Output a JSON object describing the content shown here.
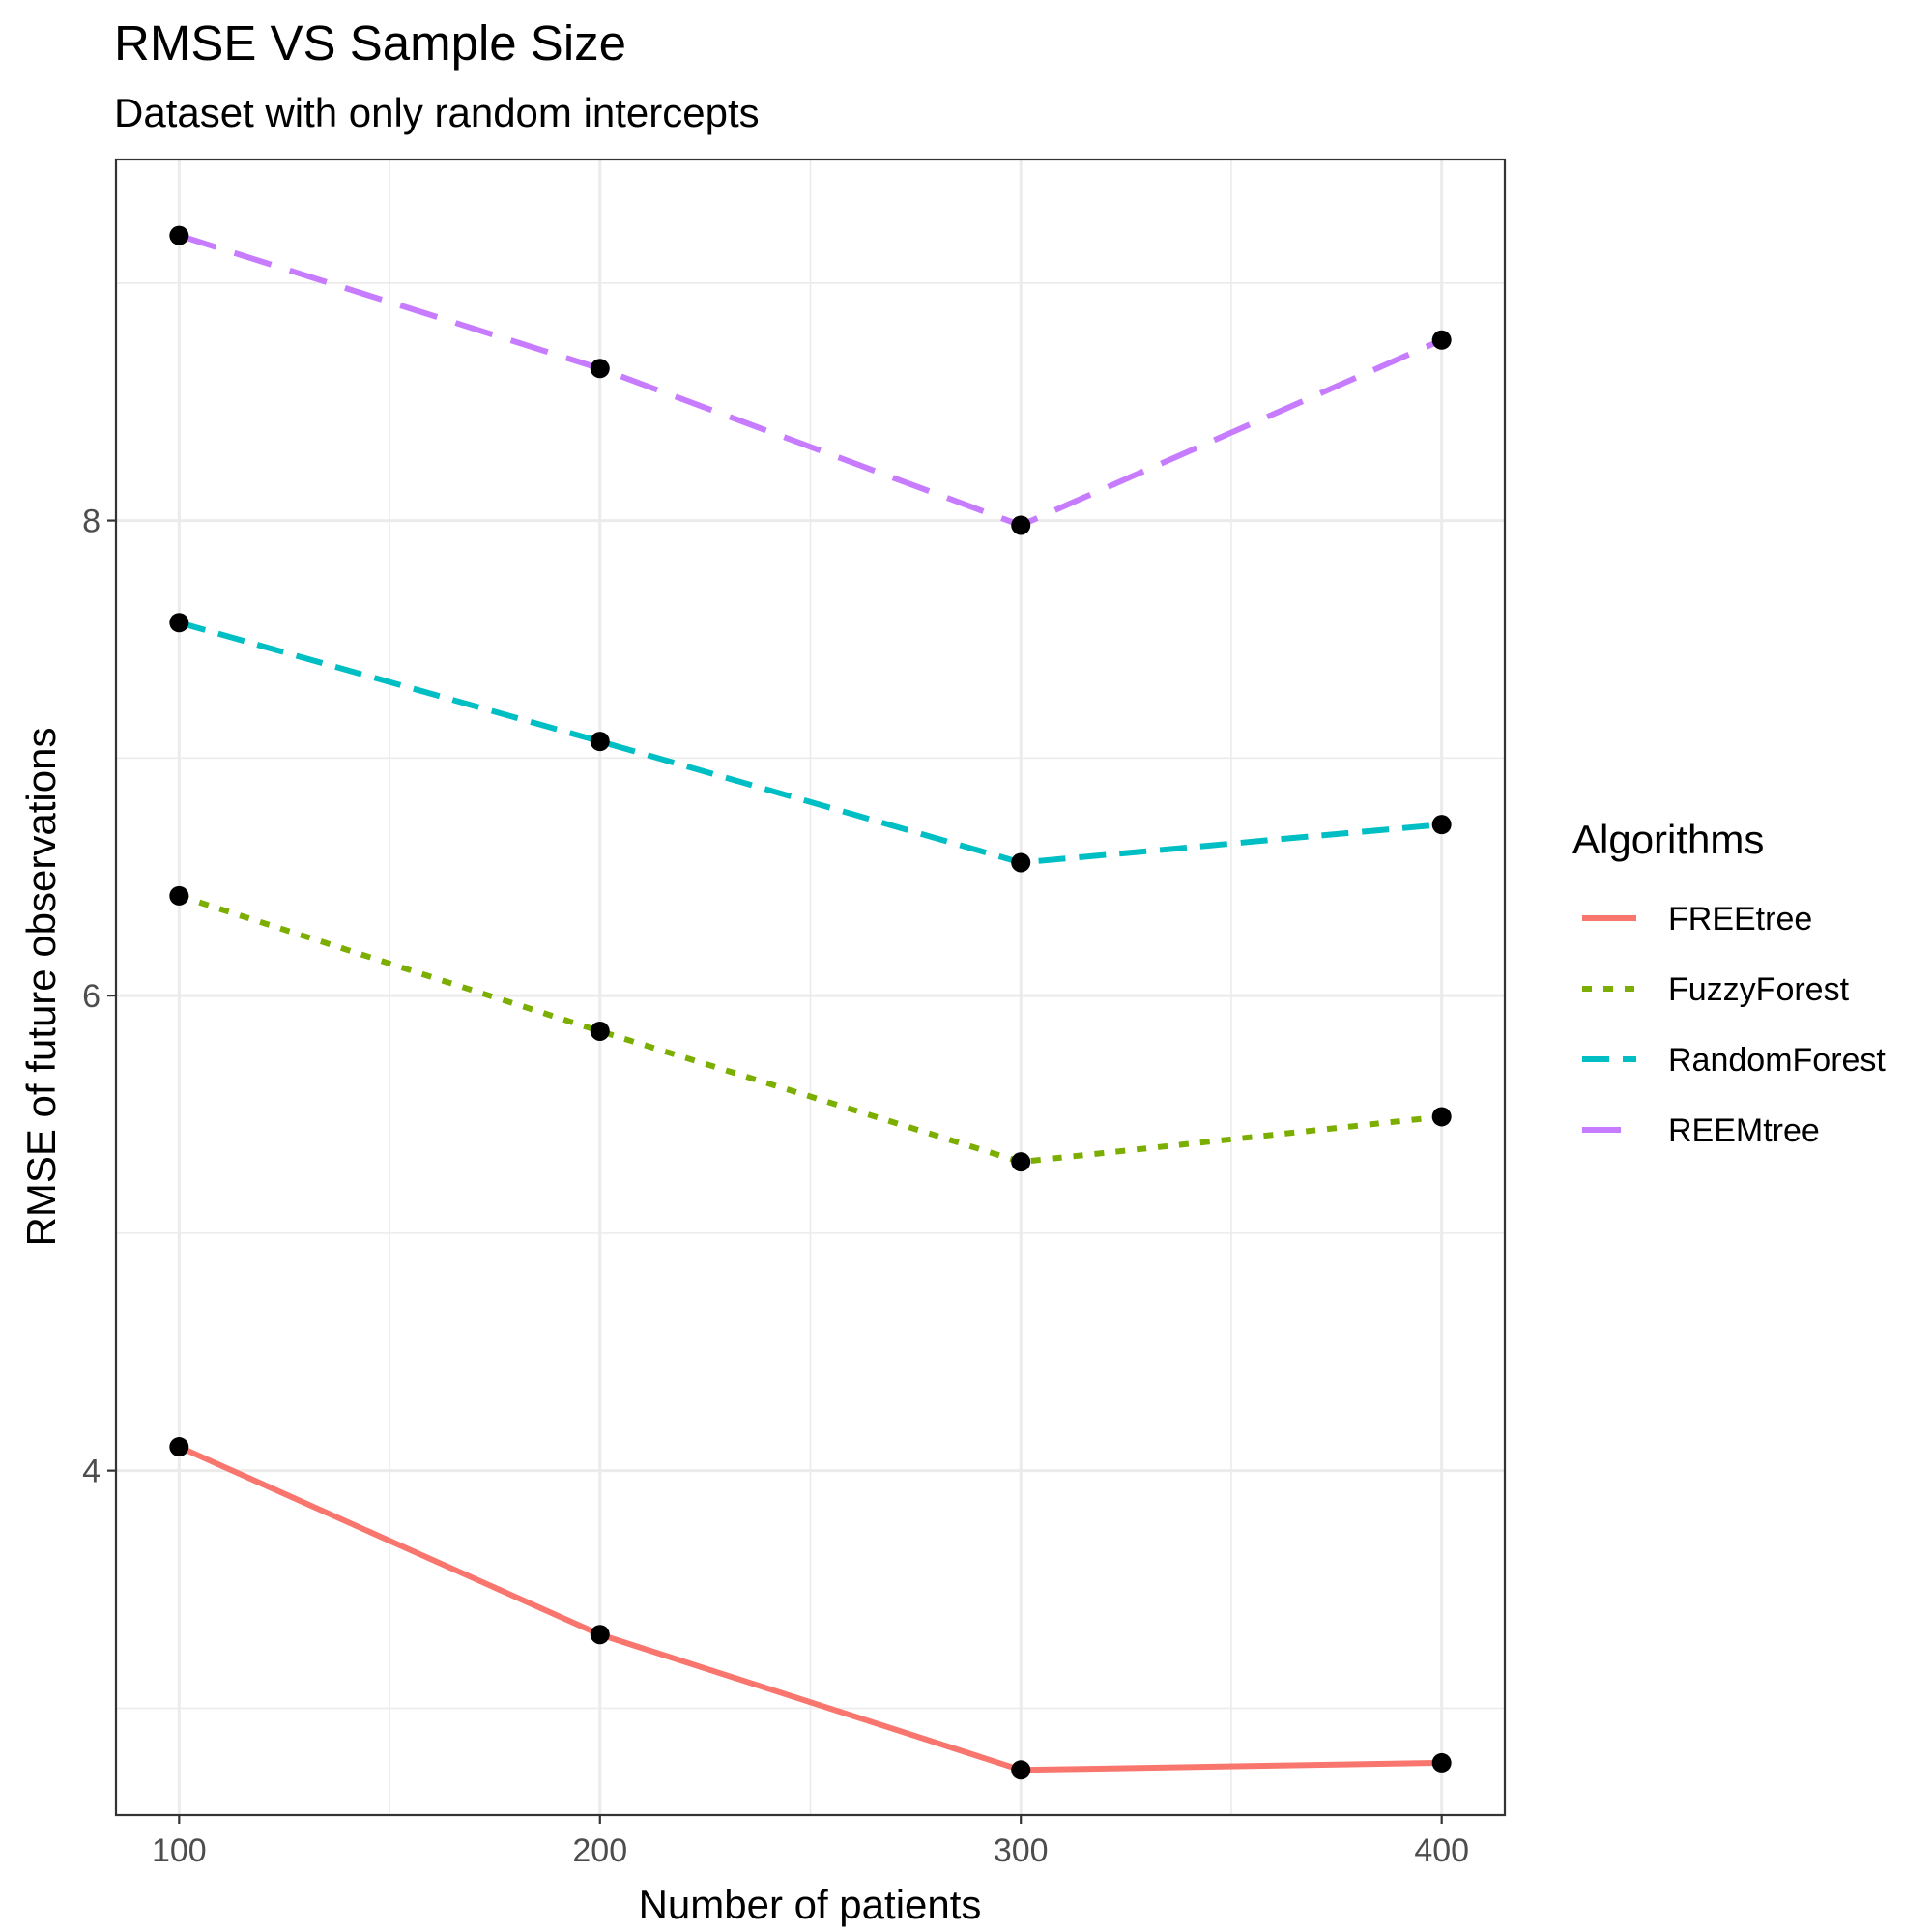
{
  "chart_data": {
    "type": "line",
    "title": "RMSE VS Sample Size",
    "subtitle": "Dataset with only random intercepts",
    "xlabel": "Number of patients",
    "ylabel": "RMSE of future observations",
    "x": [
      100,
      200,
      300,
      400
    ],
    "xlim": [
      85,
      415
    ],
    "ylim": [
      2.55,
      9.52
    ],
    "x_ticks": [
      100,
      200,
      300,
      400
    ],
    "y_ticks": [
      4,
      6,
      8
    ],
    "grid": true,
    "legend_title": "Algorithms",
    "legend_position": "right",
    "point_color": "#000000",
    "series": [
      {
        "name": "FREEtree",
        "values": [
          4.1,
          3.31,
          2.74,
          2.77
        ],
        "color": "#F8766D",
        "dash": "solid"
      },
      {
        "name": "FuzzyForest",
        "values": [
          6.42,
          5.85,
          5.3,
          5.49
        ],
        "color": "#7CAE00",
        "dash": "dotted"
      },
      {
        "name": "RandomForest",
        "values": [
          7.57,
          7.07,
          6.56,
          6.72
        ],
        "color": "#00BFC4",
        "dash": "dashed"
      },
      {
        "name": "REEMtree",
        "values": [
          9.2,
          8.64,
          7.98,
          8.76
        ],
        "color": "#C77CFF",
        "dash": "longdash"
      }
    ]
  }
}
